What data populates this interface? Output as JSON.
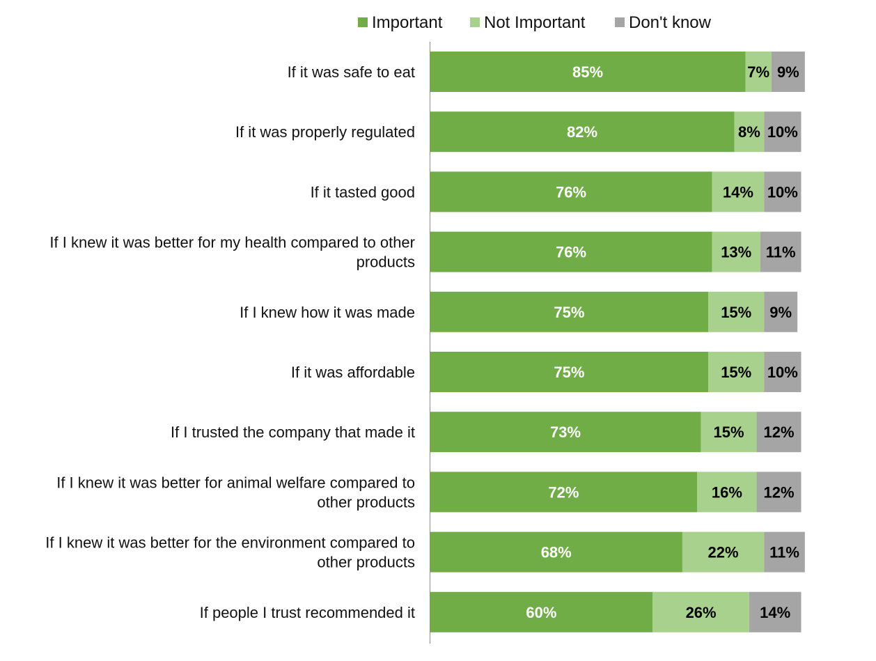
{
  "chart_data": {
    "type": "bar",
    "orientation": "horizontal",
    "stacked": true,
    "title": "",
    "xlabel": "",
    "ylabel": "",
    "legend_position": "top",
    "grid": false,
    "categories": [
      "If it was safe to eat",
      "If it was properly regulated",
      "If it tasted good",
      "If I knew it was better for my health compared to other products",
      "If I knew how it was made",
      "If it was affordable",
      "If I trusted the company that made it",
      "If I knew it was better for animal welfare compared to other products",
      "If I knew it was better for the environment compared to other products",
      "If people I trust recommended it"
    ],
    "category_lines": [
      [
        "If it was safe to eat"
      ],
      [
        "If it was properly regulated"
      ],
      [
        "If it tasted good"
      ],
      [
        "If I knew it was better for my health compared to other",
        "products"
      ],
      [
        "If I knew how it was made"
      ],
      [
        "If it was affordable"
      ],
      [
        "If I trusted the company that made it"
      ],
      [
        "If I knew it was better for animal welfare compared to",
        "other products"
      ],
      [
        "If I knew it was better for the environment compared to",
        "other products"
      ],
      [
        "If people I trust recommended it"
      ]
    ],
    "series": [
      {
        "name": "Important",
        "color": "#70ad47",
        "label_color": "#ffffff",
        "values": [
          85,
          82,
          76,
          76,
          75,
          75,
          73,
          72,
          68,
          60
        ]
      },
      {
        "name": "Not Important",
        "color": "#a9d18e",
        "label_color": "#000000",
        "values": [
          7,
          8,
          14,
          13,
          15,
          15,
          15,
          16,
          22,
          26
        ]
      },
      {
        "name": "Don't know",
        "color": "#a5a5a5",
        "label_color": "#000000",
        "values": [
          9,
          10,
          10,
          11,
          9,
          10,
          12,
          12,
          11,
          14
        ]
      }
    ],
    "value_suffix": "%"
  }
}
